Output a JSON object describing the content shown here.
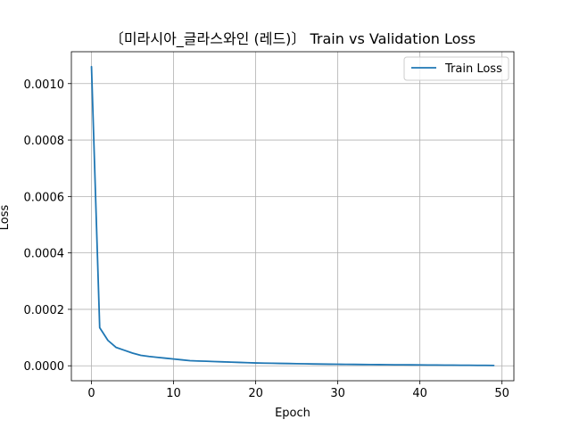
{
  "chart_data": {
    "type": "line",
    "title": "〔미라시아_글라스와인 (레드)〕 Train vs Validation Loss",
    "xlabel": "Epoch",
    "ylabel": "Loss",
    "xlim": [
      -2.45,
      51.45
    ],
    "ylim": [
      -5.3e-05,
      0.001113
    ],
    "xticks": [
      0,
      10,
      20,
      30,
      40,
      50
    ],
    "xtick_labels": [
      "0",
      "10",
      "20",
      "30",
      "40",
      "50"
    ],
    "yticks": [
      0.0,
      0.0002,
      0.0004,
      0.0006,
      0.0008,
      0.001
    ],
    "ytick_labels": [
      "0.0000",
      "0.0002",
      "0.0004",
      "0.0006",
      "0.0008",
      "0.0010"
    ],
    "grid": true,
    "legend_position": "top-right",
    "series": [
      {
        "name": "Train Loss",
        "color": "#1f77b4",
        "x": [
          0,
          1,
          2,
          3,
          4,
          5,
          6,
          7,
          8,
          9,
          10,
          11,
          12,
          13,
          14,
          15,
          16,
          17,
          18,
          19,
          20,
          21,
          22,
          23,
          24,
          25,
          26,
          27,
          28,
          29,
          30,
          31,
          32,
          33,
          34,
          35,
          36,
          37,
          38,
          39,
          40,
          41,
          42,
          43,
          44,
          45,
          46,
          47,
          48,
          49
        ],
        "y": [
          0.00106,
          0.000135,
          9e-05,
          6.5e-05,
          5.5e-05,
          4.5e-05,
          3.7e-05,
          3.3e-05,
          3e-05,
          2.7e-05,
          2.4e-05,
          2.1e-05,
          1.8e-05,
          1.7e-05,
          1.6e-05,
          1.5e-05,
          1.4e-05,
          1.3e-05,
          1.2e-05,
          1.1e-05,
          1e-05,
          9.5e-06,
          9e-06,
          8.5e-06,
          8e-06,
          7.5e-06,
          7e-06,
          6.5e-06,
          6e-06,
          5.7e-06,
          5.4e-06,
          5.1e-06,
          4.8e-06,
          4.5e-06,
          4.2e-06,
          4e-06,
          3.8e-06,
          3.6e-06,
          3.4e-06,
          3.2e-06,
          3e-06,
          2.8e-06,
          2.6e-06,
          2.4e-06,
          2.2e-06,
          2e-06,
          1.8e-06,
          1.6e-06,
          1.4e-06,
          1.2e-06
        ]
      }
    ]
  }
}
